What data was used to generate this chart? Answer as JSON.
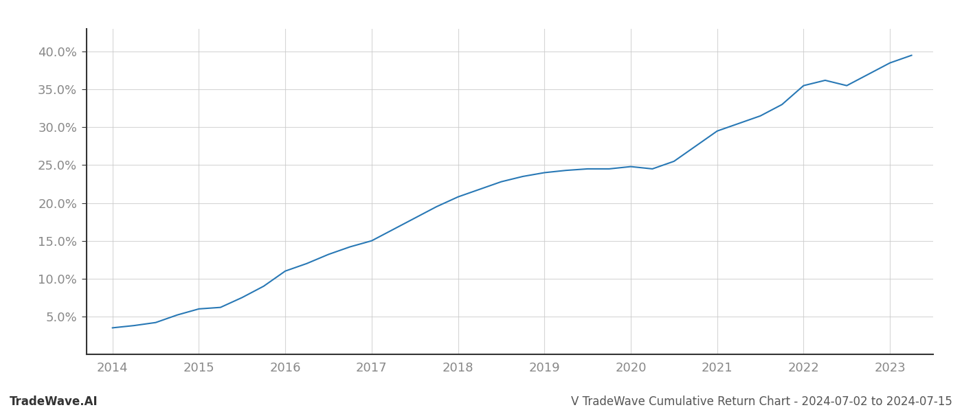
{
  "x_values": [
    2014.0,
    2014.25,
    2014.5,
    2014.75,
    2015.0,
    2015.25,
    2015.5,
    2015.75,
    2016.0,
    2016.25,
    2016.5,
    2016.75,
    2017.0,
    2017.25,
    2017.5,
    2017.75,
    2018.0,
    2018.25,
    2018.5,
    2018.75,
    2019.0,
    2019.25,
    2019.5,
    2019.75,
    2020.0,
    2020.25,
    2020.5,
    2020.75,
    2021.0,
    2021.25,
    2021.5,
    2021.75,
    2022.0,
    2022.25,
    2022.5,
    2022.75,
    2023.0,
    2023.25
  ],
  "y_values": [
    3.5,
    3.8,
    4.2,
    5.2,
    6.0,
    6.2,
    7.5,
    9.0,
    11.0,
    12.0,
    13.2,
    14.2,
    15.0,
    16.5,
    18.0,
    19.5,
    20.8,
    21.8,
    22.8,
    23.5,
    24.0,
    24.3,
    24.5,
    24.5,
    24.8,
    24.5,
    25.5,
    27.5,
    29.5,
    30.5,
    31.5,
    33.0,
    35.5,
    36.2,
    35.5,
    37.0,
    38.5,
    39.5
  ],
  "line_color": "#2878b5",
  "line_width": 1.5,
  "background_color": "#ffffff",
  "grid_color": "#cccccc",
  "grid_alpha": 0.8,
  "xlim": [
    2013.7,
    2023.5
  ],
  "ylim": [
    0.0,
    43.0
  ],
  "yticks": [
    5.0,
    10.0,
    15.0,
    20.0,
    25.0,
    30.0,
    35.0,
    40.0
  ],
  "xticks": [
    2014,
    2015,
    2016,
    2017,
    2018,
    2019,
    2020,
    2021,
    2022,
    2023
  ],
  "bottom_left_text": "TradeWave.AI",
  "bottom_right_text": "V TradeWave Cumulative Return Chart - 2024-07-02 to 2024-07-15",
  "tick_label_color": "#888888",
  "tick_fontsize": 13,
  "footer_fontsize": 12,
  "left_spine_color": "#333333",
  "bottom_spine_color": "#333333"
}
